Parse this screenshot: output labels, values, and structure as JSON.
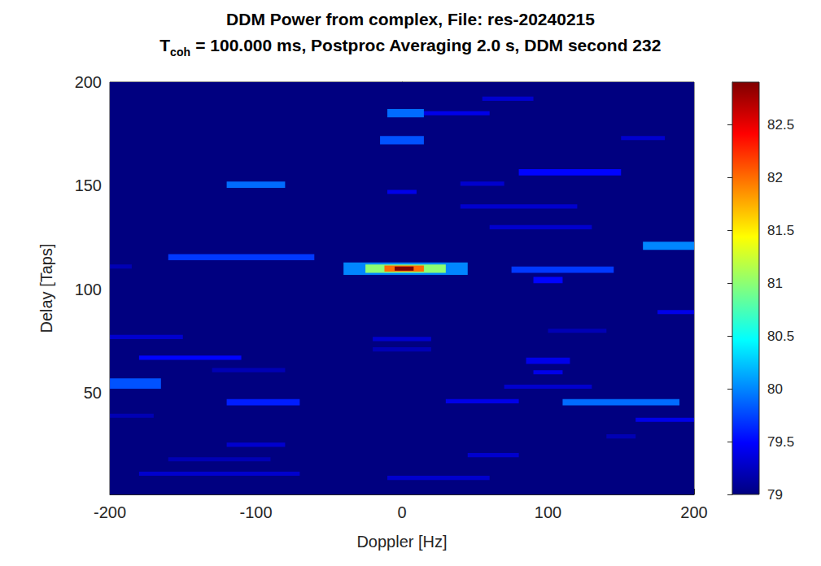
{
  "chart_data": {
    "type": "heatmap",
    "title": "DDM Power from complex, File: res-20240215",
    "subtitle": "Tcoh = 100.000 ms, Postproc Averaging 2.0 s, DDM second 232",
    "x_label": "Doppler [Hz]",
    "y_label": "Delay [Taps]",
    "xlim": [
      -200,
      200
    ],
    "xticks": [
      -200,
      -100,
      0,
      100,
      200
    ],
    "ylim": [
      1,
      200
    ],
    "yticks": [
      50,
      100,
      150,
      200
    ],
    "grid": false,
    "color": "jet",
    "colorbar": {
      "range": [
        79,
        82.9
      ],
      "ticks": [
        79,
        79.5,
        80,
        80.5,
        81,
        81.5,
        82,
        82.5
      ]
    },
    "cells": [
      {
        "doppler": [
          -200,
          200
        ],
        "delay": [
          1,
          200
        ],
        "power": 79
      },
      {
        "doppler": [
          -10,
          60
        ],
        "delay": [
          184,
          186
        ],
        "power": 79.4
      },
      {
        "doppler": [
          -10,
          15
        ],
        "delay": [
          183,
          187
        ],
        "power": 79.9
      },
      {
        "doppler": [
          -15,
          15
        ],
        "delay": [
          170,
          174
        ],
        "power": 79.8
      },
      {
        "doppler": [
          55,
          90
        ],
        "delay": [
          191,
          193
        ],
        "power": 79.3
      },
      {
        "doppler": [
          150,
          180
        ],
        "delay": [
          172,
          174
        ],
        "power": 79.3
      },
      {
        "doppler": [
          -120,
          -80
        ],
        "delay": [
          149,
          152
        ],
        "power": 79.9
      },
      {
        "doppler": [
          -10,
          10
        ],
        "delay": [
          146,
          148
        ],
        "power": 79.4
      },
      {
        "doppler": [
          80,
          150
        ],
        "delay": [
          155,
          158
        ],
        "power": 79.5
      },
      {
        "doppler": [
          40,
          70
        ],
        "delay": [
          150,
          152
        ],
        "power": 79.3
      },
      {
        "doppler": [
          40,
          120
        ],
        "delay": [
          139,
          141
        ],
        "power": 79.3
      },
      {
        "doppler": [
          60,
          130
        ],
        "delay": [
          129,
          131
        ],
        "power": 79.3
      },
      {
        "doppler": [
          -160,
          -60
        ],
        "delay": [
          114,
          117
        ],
        "power": 79.7
      },
      {
        "doppler": [
          165,
          200
        ],
        "delay": [
          119,
          123
        ],
        "power": 80.0
      },
      {
        "doppler": [
          75,
          145
        ],
        "delay": [
          108,
          111
        ],
        "power": 79.7
      },
      {
        "doppler": [
          90,
          110
        ],
        "delay": [
          103,
          106
        ],
        "power": 79.5
      },
      {
        "doppler": [
          175,
          200
        ],
        "delay": [
          88,
          90
        ],
        "power": 79.4
      },
      {
        "doppler": [
          -200,
          -185
        ],
        "delay": [
          110,
          112
        ],
        "power": 79.2
      },
      {
        "doppler": [
          -40,
          45
        ],
        "delay": [
          107,
          113
        ],
        "power": 80.0
      },
      {
        "doppler": [
          -25,
          30
        ],
        "delay": [
          108,
          112
        ],
        "power": 81.0
      },
      {
        "doppler": [
          -12,
          15
        ],
        "delay": [
          108.5,
          111.5
        ],
        "power": 82.0
      },
      {
        "doppler": [
          -5,
          8
        ],
        "delay": [
          109,
          111
        ],
        "power": 82.9
      },
      {
        "doppler": [
          100,
          140
        ],
        "delay": [
          79,
          81
        ],
        "power": 79.2
      },
      {
        "doppler": [
          -20,
          20
        ],
        "delay": [
          75,
          77
        ],
        "power": 79.3
      },
      {
        "doppler": [
          -200,
          -150
        ],
        "delay": [
          76,
          78
        ],
        "power": 79.3
      },
      {
        "doppler": [
          -20,
          20
        ],
        "delay": [
          70,
          72
        ],
        "power": 79.2
      },
      {
        "doppler": [
          -180,
          -110
        ],
        "delay": [
          66,
          68
        ],
        "power": 79.5
      },
      {
        "doppler": [
          -130,
          -80
        ],
        "delay": [
          60,
          62
        ],
        "power": 79.2
      },
      {
        "doppler": [
          85,
          115
        ],
        "delay": [
          64,
          67
        ],
        "power": 79.4
      },
      {
        "doppler": [
          90,
          110
        ],
        "delay": [
          59,
          61
        ],
        "power": 79.4
      },
      {
        "doppler": [
          -200,
          -165
        ],
        "delay": [
          52,
          57
        ],
        "power": 79.8
      },
      {
        "doppler": [
          70,
          130
        ],
        "delay": [
          52,
          54
        ],
        "power": 79.3
      },
      {
        "doppler": [
          -120,
          -70
        ],
        "delay": [
          44,
          47
        ],
        "power": 79.6
      },
      {
        "doppler": [
          30,
          80
        ],
        "delay": [
          45,
          47
        ],
        "power": 79.4
      },
      {
        "doppler": [
          110,
          190
        ],
        "delay": [
          44,
          47
        ],
        "power": 79.9
      },
      {
        "doppler": [
          -200,
          -170
        ],
        "delay": [
          38,
          40
        ],
        "power": 79.2
      },
      {
        "doppler": [
          160,
          200
        ],
        "delay": [
          36,
          38
        ],
        "power": 79.4
      },
      {
        "doppler": [
          140,
          160
        ],
        "delay": [
          28,
          30
        ],
        "power": 79.2
      },
      {
        "doppler": [
          -120,
          -80
        ],
        "delay": [
          24,
          26
        ],
        "power": 79.3
      },
      {
        "doppler": [
          45,
          80
        ],
        "delay": [
          19,
          21
        ],
        "power": 79.3
      },
      {
        "doppler": [
          -160,
          -90
        ],
        "delay": [
          17,
          19
        ],
        "power": 79.2
      },
      {
        "doppler": [
          -180,
          -70
        ],
        "delay": [
          10,
          12
        ],
        "power": 79.3
      },
      {
        "doppler": [
          -10,
          60
        ],
        "delay": [
          8,
          10
        ],
        "power": 79.3
      }
    ]
  }
}
